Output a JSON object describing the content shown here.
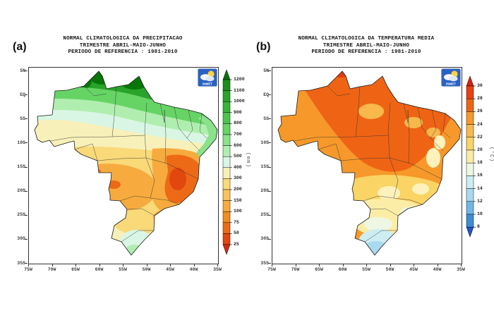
{
  "page": {
    "background": "#ffffff"
  },
  "logo": {
    "name": "INMET",
    "text": "INMET",
    "bg_color": "#2a62c4",
    "sun_color": "#ffd23e"
  },
  "axes": {
    "x_tick_labels": [
      "75W",
      "70W",
      "65W",
      "60W",
      "55W",
      "50W",
      "45W",
      "40W",
      "35W"
    ],
    "y_tick_labels": [
      "5N",
      "EQ",
      "5S",
      "10S",
      "15S",
      "20S",
      "25S",
      "30S",
      "35S"
    ]
  },
  "panels": [
    {
      "key": "precipitation",
      "label": "(a)",
      "title_lines": [
        "NORMAL CLIMATOLOGICA DA PRECIPITACAO",
        "TRIMESTRE ABRIL-MAIO-JUNHO",
        "PERIODO DE REFERENCIA : 1981-2010"
      ],
      "colorbar": {
        "unit": "(mm)",
        "boundary_labels": [
          "1200",
          "1100",
          "1000",
          "900",
          "800",
          "700",
          "600",
          "500",
          "400",
          "300",
          "200",
          "150",
          "100",
          "75",
          "50",
          "25"
        ],
        "arrow_top_color": "#067306",
        "segment_colors": [
          "#1d8f1d",
          "#2aa32a",
          "#38b438",
          "#4cc44c",
          "#65d465",
          "#8ae28a",
          "#b0eeb0",
          "#d9f6e4",
          "#f7f0b8",
          "#f9d978",
          "#f8c35c",
          "#f7ab3e",
          "#f28c24",
          "#ec6a16",
          "#e2470e"
        ],
        "arrow_bottom_color": "#d52a0c"
      },
      "map_regions": [
        {
          "name": "base-plains",
          "color": "#f7f0b8"
        },
        {
          "name": "green-north-dark",
          "color": "#2aa32a"
        },
        {
          "name": "green-darkest-west",
          "color": "#077607"
        },
        {
          "name": "green-darkest-center",
          "color": "#077607"
        },
        {
          "name": "green-darkest-east",
          "color": "#077607"
        },
        {
          "name": "green-mid-band",
          "color": "#65d465"
        },
        {
          "name": "green-light-band",
          "color": "#b0eeb0"
        },
        {
          "name": "cyan-band",
          "color": "#d9f6e4"
        },
        {
          "name": "yellow-central",
          "color": "#f9d978"
        },
        {
          "name": "orange-central-west",
          "color": "#f7ab3e"
        },
        {
          "name": "orange-east",
          "color": "#f7ab3e"
        },
        {
          "name": "orange-south",
          "color": "#f7ab3e"
        },
        {
          "name": "deep-orange-east",
          "color": "#ec6a16"
        },
        {
          "name": "deep-orange-west-a",
          "color": "#ec6a16"
        },
        {
          "name": "deep-orange-west-b",
          "color": "#ec6a16"
        },
        {
          "name": "red-core-east",
          "color": "#e2470e"
        },
        {
          "name": "coast-green-strip",
          "color": "#8ae28a"
        },
        {
          "name": "cyan-south",
          "color": "#d9f6e4"
        },
        {
          "name": "green-south-tip",
          "color": "#b0eeb0"
        }
      ]
    },
    {
      "key": "temperature",
      "label": "(b)",
      "title_lines": [
        "NORMAL CLIMATOLOGICA DA TEMPERATURA MEDIA",
        "TRIMESTRE ABRIL-MAIO-JUNHO",
        "PERIODO DE REFERENCIA : 1981-2010"
      ],
      "colorbar": {
        "unit": "(°C)",
        "boundary_labels": [
          "30",
          "28",
          "26",
          "24",
          "22",
          "20",
          "18",
          "16",
          "14",
          "12",
          "10",
          "8"
        ],
        "arrow_top_color": "#d6200e",
        "segment_colors": [
          "#e84114",
          "#ef6414",
          "#f6992a",
          "#f8b84c",
          "#fad464",
          "#fceda6",
          "#edf7e4",
          "#cdedf2",
          "#a8d9ef",
          "#6fb7e6",
          "#3f8cd6"
        ],
        "arrow_bottom_color": "#2255cc"
      },
      "map_regions": [
        {
          "name": "base-warm",
          "color": "#f6992a"
        },
        {
          "name": "hot-north",
          "color": "#ef6414"
        },
        {
          "name": "red-north-tip",
          "color": "#e13a10"
        },
        {
          "name": "red-northeast",
          "color": "#e84114"
        },
        {
          "name": "warm-patch-a",
          "color": "#f8b84c"
        },
        {
          "name": "warm-patch-b",
          "color": "#f8b84c"
        },
        {
          "name": "warm-patch-c",
          "color": "#f8b84c"
        },
        {
          "name": "yellow-band",
          "color": "#fad464"
        },
        {
          "name": "cream-patch-a",
          "color": "#fdf2bc"
        },
        {
          "name": "cream-patch-b",
          "color": "#fdf2bc"
        },
        {
          "name": "cream-patch-c",
          "color": "#fdf2bc"
        },
        {
          "name": "cream-patch-d",
          "color": "#fdf2bc"
        },
        {
          "name": "pale-yellow-south",
          "color": "#fceda6"
        },
        {
          "name": "near-white-a",
          "color": "#edf7e4"
        },
        {
          "name": "near-white-b",
          "color": "#edf7e4"
        },
        {
          "name": "cyan-south",
          "color": "#cdedf2"
        },
        {
          "name": "blue-south",
          "color": "#a8d9ef"
        },
        {
          "name": "red-coast-spot",
          "color": "#e84114"
        }
      ]
    }
  ],
  "chart_data": [
    {
      "type": "heatmap",
      "title": "NORMAL CLIMATOLOGICA DA PRECIPITACAO",
      "subtitle": "TRIMESTRE ABRIL-MAIO-JUNHO",
      "period": "PERIODO DE REFERENCIA : 1981-2010",
      "unit": "mm",
      "x_range_deg_west": [
        75,
        35
      ],
      "y_range_deg": [
        "5N",
        "35S"
      ],
      "scale_boundaries": [
        25,
        50,
        75,
        100,
        150,
        200,
        300,
        400,
        500,
        600,
        700,
        800,
        900,
        1000,
        1100,
        1200
      ],
      "legend_position": "right",
      "region_values_mm": {
        "north-amazon": "800-1200",
        "central-transition-band": "400-600",
        "central-west": "100-300",
        "east-bahia-minas-core": "25-100",
        "northeast-coast-strip": "500-700",
        "south": "200-400",
        "far-south-rio-grande": "400-500"
      }
    },
    {
      "type": "heatmap",
      "title": "NORMAL CLIMATOLOGICA DA TEMPERATURA MEDIA",
      "subtitle": "TRIMESTRE ABRIL-MAIO-JUNHO",
      "period": "PERIODO DE REFERENCIA : 1981-2010",
      "unit": "°C",
      "x_range_deg_west": [
        75,
        35
      ],
      "y_range_deg": [
        "5N",
        "35S"
      ],
      "scale_boundaries": [
        8,
        10,
        12,
        14,
        16,
        18,
        20,
        22,
        24,
        26,
        28,
        30
      ],
      "legend_position": "right",
      "region_values_c": {
        "north": "26-28",
        "central": "24-26",
        "east-highlands": "18-22",
        "southeast": "18-22",
        "south": "14-18",
        "far-south-rio-grande": "12-14"
      }
    }
  ]
}
